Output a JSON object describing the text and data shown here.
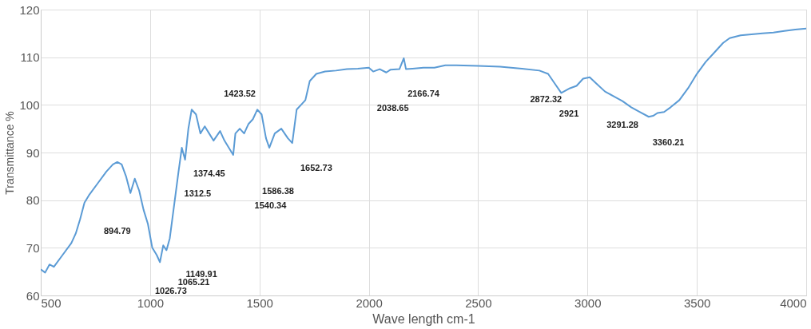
{
  "chart_data": {
    "type": "line",
    "xlabel": "Wave length cm-1",
    "ylabel": "Transmittance %",
    "xlim": [
      500,
      4000
    ],
    "xticks": [
      500,
      1000,
      1500,
      2000,
      2500,
      3000,
      3500,
      4000
    ],
    "ylim": [
      60,
      120
    ],
    "yticks": [
      60,
      70,
      80,
      90,
      100,
      110,
      120
    ],
    "grid": true,
    "marker": "none",
    "line_style": "solid",
    "x": [
      500,
      520,
      540,
      560,
      600,
      640,
      660,
      680,
      700,
      720,
      760,
      800,
      830,
      850,
      870,
      890,
      910,
      930,
      950,
      970,
      990,
      1010,
      1030,
      1045,
      1060,
      1075,
      1090,
      1110,
      1130,
      1145,
      1160,
      1175,
      1190,
      1210,
      1230,
      1250,
      1270,
      1290,
      1320,
      1340,
      1360,
      1380,
      1390,
      1410,
      1430,
      1450,
      1470,
      1490,
      1510,
      1530,
      1545,
      1570,
      1600,
      1630,
      1650,
      1670,
      1690,
      1710,
      1730,
      1760,
      1800,
      1850,
      1900,
      1950,
      2000,
      2020,
      2050,
      2080,
      2100,
      2140,
      2160,
      2170,
      2200,
      2250,
      2300,
      2350,
      2400,
      2500,
      2600,
      2700,
      2780,
      2820,
      2850,
      2880,
      2920,
      2950,
      2980,
      3010,
      3040,
      3080,
      3120,
      3160,
      3200,
      3240,
      3280,
      3300,
      3320,
      3350,
      3380,
      3420,
      3460,
      3500,
      3540,
      3580,
      3620,
      3650,
      3700,
      3750,
      3800,
      3850,
      3900,
      3950,
      4000
    ],
    "series": [
      {
        "color": "#5b9bd5",
        "values": [
          65.5,
          64.8,
          66.5,
          66,
          68.5,
          71,
          73,
          76,
          79.5,
          81,
          83.5,
          86,
          87.5,
          88,
          87.5,
          85,
          81.5,
          84.5,
          82,
          78,
          75,
          70,
          68.5,
          67,
          70.5,
          69.5,
          72,
          79,
          86,
          91,
          88.5,
          95,
          99,
          98,
          94,
          95.5,
          94,
          92.5,
          94.5,
          92.5,
          91,
          89.5,
          94,
          95,
          94,
          96,
          97,
          99,
          98,
          93,
          91,
          94,
          95,
          93,
          92,
          99,
          100,
          101,
          105,
          106.5,
          107,
          107.2,
          107.5,
          107.6,
          107.8,
          107,
          107.5,
          106.8,
          107.4,
          107.5,
          109.8,
          107.5,
          107.6,
          107.8,
          107.8,
          108.3,
          108.3,
          108.2,
          108,
          107.6,
          107.2,
          106.5,
          104.5,
          102.5,
          103.5,
          104,
          105.5,
          105.8,
          104.5,
          102.8,
          101.8,
          100.8,
          99.5,
          98.5,
          97.5,
          97.7,
          98.3,
          98.5,
          99.5,
          101,
          103.5,
          106.5,
          109,
          111,
          113,
          114,
          114.6,
          114.8,
          115,
          115.2,
          115.5,
          115.8,
          116
        ]
      }
    ],
    "annotations": [
      "894.79",
      "1149.91",
      "1065.21",
      "1026.73",
      "1312.5",
      "1374.45",
      "1423.52",
      "1540.34",
      "1586.38",
      "1652.73",
      "2038.65",
      "2166.74",
      "2872.32",
      "2921",
      "3291.28",
      "3360.21"
    ]
  }
}
